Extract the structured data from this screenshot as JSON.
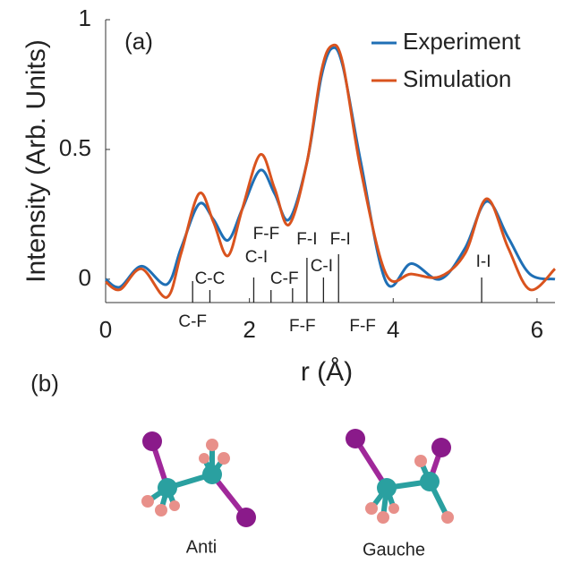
{
  "chart_data": {
    "type": "line",
    "panel_label": "(a)",
    "xlabel": "r (Å)",
    "ylabel": "Intensity (Arb. Units)",
    "xlim": [
      0,
      6.25
    ],
    "ylim": [
      -0.09,
      1
    ],
    "xticks": [
      0,
      2,
      4,
      6
    ],
    "yticks": [
      0,
      0.5,
      1
    ],
    "legend": "upper right",
    "x": [
      0,
      0.2,
      0.5,
      0.85,
      1.05,
      1.3,
      1.5,
      1.7,
      1.9,
      2.15,
      2.35,
      2.55,
      2.8,
      3.0,
      3.15,
      3.3,
      3.55,
      3.9,
      4.25,
      4.65,
      5.0,
      5.3,
      5.6,
      5.9,
      6.25
    ],
    "series": [
      {
        "name": "Experiment",
        "color": "#1f6fb5",
        "values": [
          0.0,
          -0.03,
          0.05,
          -0.02,
          0.12,
          0.29,
          0.23,
          0.15,
          0.27,
          0.42,
          0.33,
          0.23,
          0.45,
          0.78,
          0.89,
          0.82,
          0.45,
          -0.01,
          0.06,
          0.0,
          0.12,
          0.3,
          0.16,
          0.02,
          0.0
        ]
      },
      {
        "name": "Simulation",
        "color": "#d9531e",
        "values": [
          -0.01,
          -0.04,
          0.04,
          -0.07,
          0.1,
          0.33,
          0.22,
          0.09,
          0.27,
          0.48,
          0.35,
          0.21,
          0.45,
          0.8,
          0.9,
          0.83,
          0.42,
          0.02,
          0.02,
          0.01,
          0.1,
          0.31,
          0.12,
          -0.04,
          0.04
        ]
      }
    ],
    "annotations": [
      {
        "label": "C-F",
        "x": 1.21
      },
      {
        "label": "C-C",
        "x": 1.45
      },
      {
        "label": "F-F",
        "x": 2.06
      },
      {
        "label": "C-I",
        "x": 2.06
      },
      {
        "label": "C-F",
        "x": 2.3
      },
      {
        "label": "F-F",
        "x": 2.6
      },
      {
        "label": "F-I",
        "x": 2.8
      },
      {
        "label": "C-I",
        "x": 3.03
      },
      {
        "label": "F-I",
        "x": 3.24
      },
      {
        "label": "F-F",
        "x": 3.5
      },
      {
        "label": "I-I",
        "x": 5.23
      }
    ]
  },
  "figure_b": {
    "panel_label": "(b)",
    "molecules": [
      {
        "label": "Anti"
      },
      {
        "label": "Gauche"
      }
    ]
  }
}
